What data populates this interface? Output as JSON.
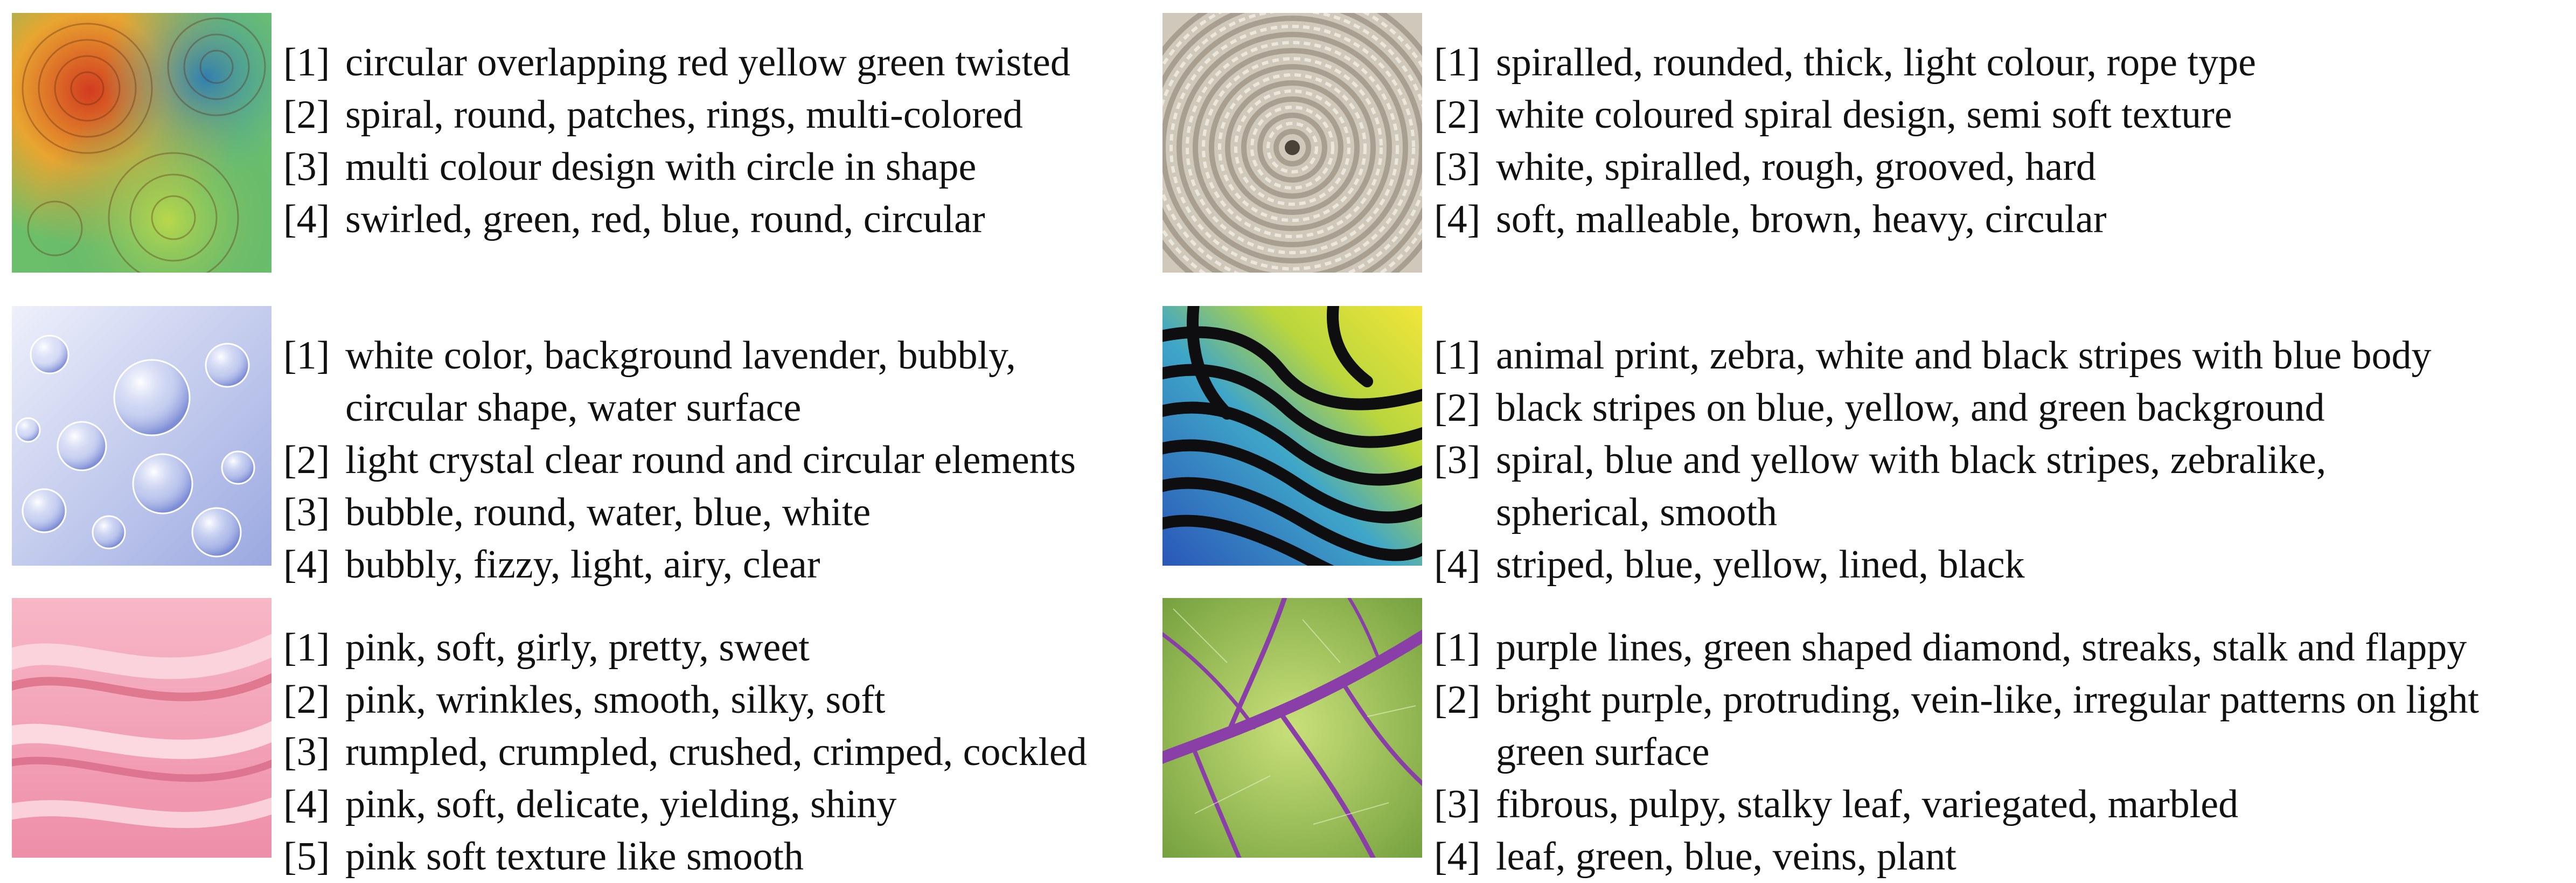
{
  "items": [
    {
      "image": "circular overlapping swirl texture",
      "lines": [
        {
          "idx": "[1]",
          "text": [
            "circular overlapping red yellow green twisted"
          ]
        },
        {
          "idx": "[2]",
          "text": [
            "spiral, round, patches, rings, multi-colored"
          ]
        },
        {
          "idx": "[3]",
          "text": [
            "multi colour design with circle in shape"
          ]
        },
        {
          "idx": "[4]",
          "text": [
            "swirled, green, red, blue, round, circular"
          ]
        }
      ]
    },
    {
      "image": "coiled rope texture",
      "lines": [
        {
          "idx": "[1]",
          "text": [
            "spiralled, rounded, thick, light colour, rope type"
          ]
        },
        {
          "idx": "[2]",
          "text": [
            "white coloured spiral design, semi soft texture"
          ]
        },
        {
          "idx": "[3]",
          "text": [
            "white, spiralled, rough, grooved, hard"
          ]
        },
        {
          "idx": "[4]",
          "text": [
            "soft, malleable, brown, heavy, circular"
          ]
        }
      ]
    },
    {
      "image": "water bubbles texture",
      "lines": [
        {
          "idx": "[1]",
          "text": [
            "white color, background lavender, bubbly,",
            "circular shape, water surface"
          ]
        },
        {
          "idx": "[2]",
          "text": [
            "light crystal clear round and circular elements"
          ]
        },
        {
          "idx": "[3]",
          "text": [
            "bubble, round, water, blue, white"
          ]
        },
        {
          "idx": "[4]",
          "text": [
            "bubbly, fizzy, light, airy, clear"
          ]
        }
      ]
    },
    {
      "image": "zebra stripes on blue and yellow texture",
      "lines": [
        {
          "idx": "[1]",
          "text": [
            "animal print, zebra, white and black stripes with blue body"
          ]
        },
        {
          "idx": "[2]",
          "text": [
            "black stripes on blue, yellow, and green background"
          ]
        },
        {
          "idx": "[3]",
          "text": [
            "spiral, blue and yellow with black stripes, zebralike,",
            "spherical, smooth"
          ]
        },
        {
          "idx": "[4]",
          "text": [
            "striped, blue, yellow, lined, black"
          ]
        }
      ]
    },
    {
      "image": "pink silk fabric texture",
      "lines": [
        {
          "idx": "[1]",
          "text": [
            "pink, soft, girly, pretty, sweet"
          ]
        },
        {
          "idx": "[2]",
          "text": [
            "pink, wrinkles, smooth, silky, soft"
          ]
        },
        {
          "idx": "[3]",
          "text": [
            "rumpled, crumpled, crushed, crimped, cockled"
          ]
        },
        {
          "idx": "[4]",
          "text": [
            "pink, soft, delicate, yielding, shiny"
          ]
        },
        {
          "idx": "[5]",
          "text": [
            "pink soft texture like smooth"
          ]
        }
      ]
    },
    {
      "image": "green leaf with purple veins texture",
      "lines": [
        {
          "idx": "[1]",
          "text": [
            "purple lines, green shaped diamond, streaks, stalk and flappy"
          ]
        },
        {
          "idx": "[2]",
          "text": [
            "bright purple, protruding, vein-like, irregular patterns on light",
            "green surface"
          ]
        },
        {
          "idx": "[3]",
          "text": [
            "fibrous, pulpy, stalky leaf, variegated, marbled"
          ]
        },
        {
          "idx": "[4]",
          "text": [
            "leaf, green, blue, veins, plant"
          ]
        }
      ]
    }
  ]
}
